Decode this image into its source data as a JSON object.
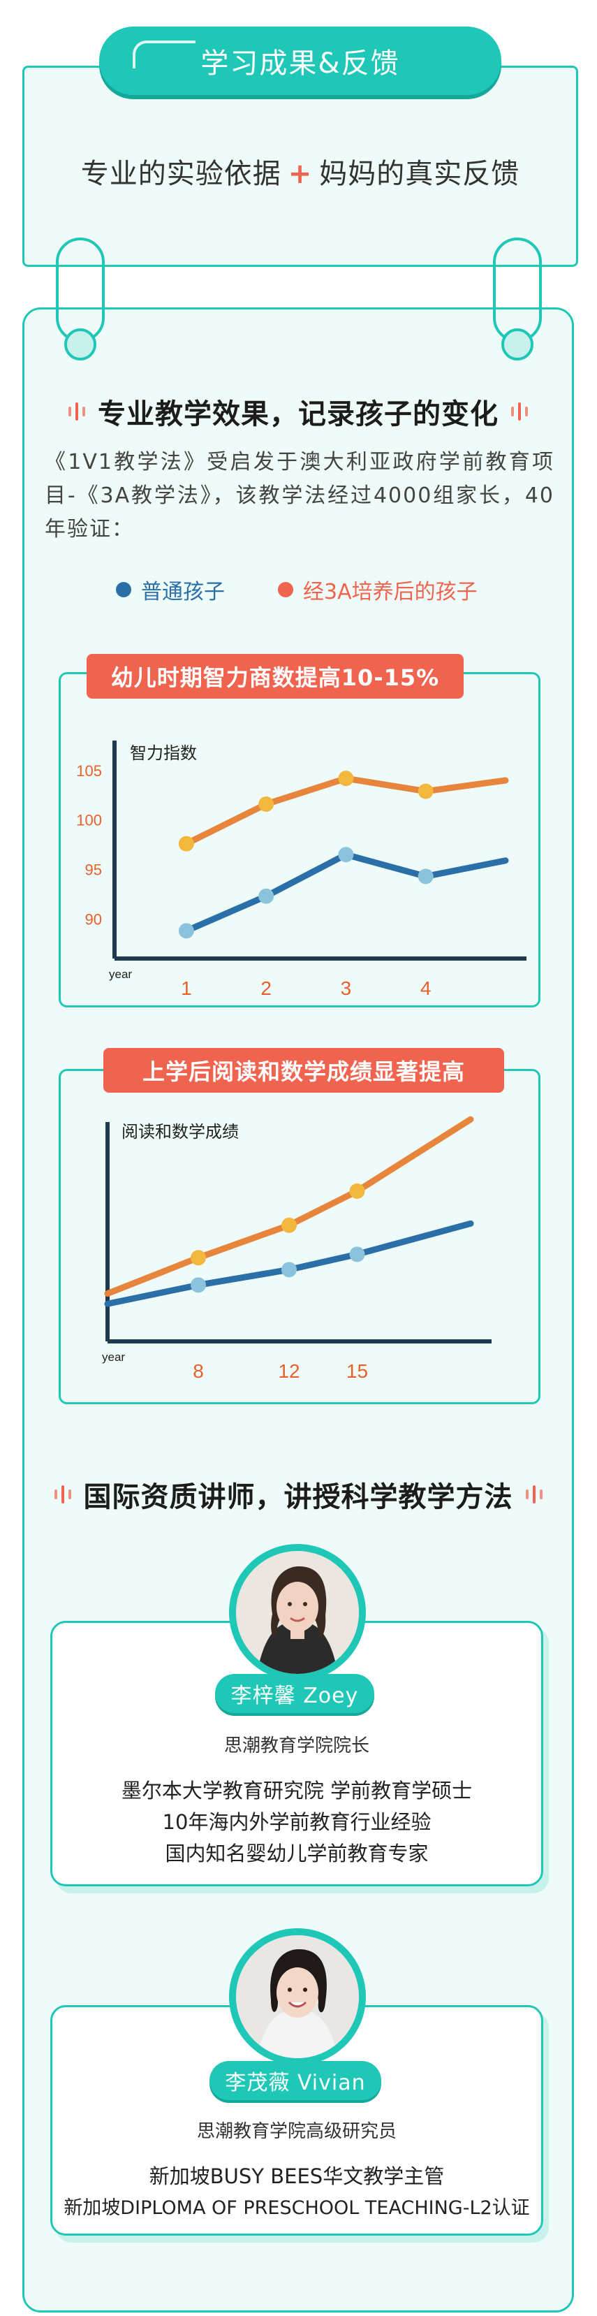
{
  "header": {
    "title": "学习成果&反馈",
    "intro_left": "专业的实验依据",
    "intro_plus": "+",
    "intro_right": "妈妈的真实反馈"
  },
  "section1": {
    "heading": "专业教学效果，记录孩子的变化",
    "description": "《1V1教学法》受启发于澳大利亚政府学前教育项目-《3A教学法》，该教学法经过4000组家长，40年验证：",
    "legend": [
      {
        "label": "普通孩子",
        "color": "#2a6fa8"
      },
      {
        "label": "经3A培养后的孩子",
        "color": "#f0644f"
      }
    ]
  },
  "colors": {
    "accent": "#1fc7b7",
    "blue_series": "#2a6fa8",
    "orange_series": "#e8853c",
    "tick_label": "#e8602c"
  },
  "chart_data": [
    {
      "type": "line",
      "title": "幼儿时期智力商数提高10-15%",
      "ylabel": "智力指数",
      "xlabel": "year",
      "x": [
        1,
        2,
        3,
        4
      ],
      "xlim": [
        0.1,
        5
      ],
      "ylim": [
        86,
        110
      ],
      "yticks": [
        90,
        95,
        100,
        105
      ],
      "series": [
        {
          "values": [
            88.8,
            92.3,
            96.5,
            94.3,
            95.9
          ],
          "x": [
            1,
            2,
            3,
            4,
            5
          ],
          "color": "#2a6fa8"
        },
        {
          "values": [
            97.6,
            101.6,
            104.2,
            102.9,
            104.0
          ],
          "x": [
            1,
            2,
            3,
            4,
            5
          ],
          "color": "#e8853c"
        }
      ],
      "grid": false
    },
    {
      "type": "line",
      "title": "上学后阅读和数学成绩显著提高",
      "ylabel": "阅读和数学成绩",
      "xlabel": "year",
      "x": [
        8,
        12,
        15
      ],
      "series": [
        {
          "values": [
            2.2,
            3.3,
            4.2,
            5.1,
            6.9
          ],
          "x": [
            4,
            8,
            12,
            15,
            20
          ],
          "color": "#2a6fa8"
        },
        {
          "values": [
            2.8,
            4.9,
            6.8,
            8.8,
            13.0
          ],
          "x": [
            4,
            8,
            12,
            15,
            20
          ],
          "color": "#e8853c"
        }
      ],
      "grid": false
    }
  ],
  "section2": {
    "heading": "国际资质讲师，讲授科学教学方法"
  },
  "teachers": [
    {
      "name": "李梓馨 Zoey",
      "role": "思潮教育学院院长",
      "lines": [
        "墨尔本大学教育研究院 学前教育学硕士",
        "10年海内外学前教育行业经验",
        "国内知名婴幼儿学前教育专家"
      ]
    },
    {
      "name": "李茂薇 Vivian",
      "role": "思潮教育学院高级研究员",
      "lines": [
        "新加坡BUSY BEES华文教学主管",
        "新加坡DIPLOMA OF PRESCHOOL TEACHING-L2认证"
      ]
    }
  ]
}
